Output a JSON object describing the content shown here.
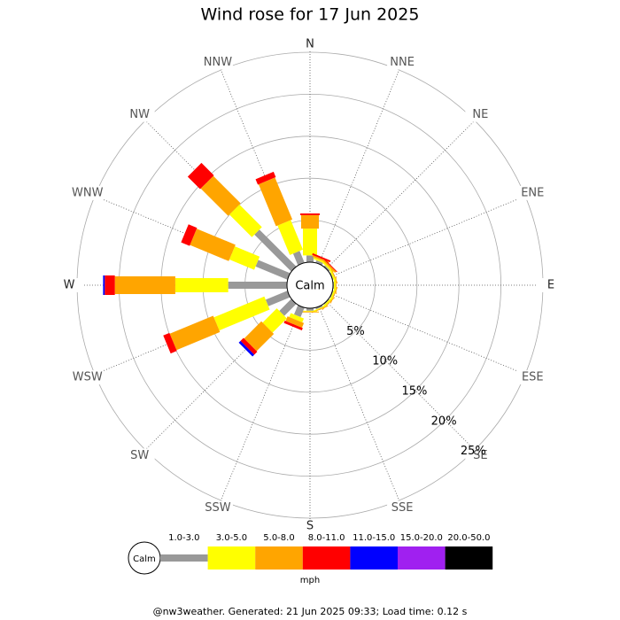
{
  "chart_data": {
    "type": "windrose",
    "title": "Wind rose for 17 Jun 2025",
    "directions": [
      "N",
      "NNE",
      "NE",
      "ENE",
      "E",
      "ESE",
      "SE",
      "SSE",
      "S",
      "SSW",
      "SW",
      "WSW",
      "W",
      "WNW",
      "NW",
      "NNW"
    ],
    "series": [
      {
        "name": "1.0-3.0",
        "color": "#999999",
        "values": [
          0.8,
          0.3,
          0.2,
          0.1,
          0.1,
          0.1,
          0.1,
          0.2,
          0.3,
          1.2,
          2.0,
          2.8,
          7.0,
          4.1,
          6.2,
          1.5
        ]
      },
      {
        "name": "3.0-5.0",
        "color": "#ffff00",
        "values": [
          3.2,
          0.2,
          0.2,
          0.2,
          0.2,
          0.2,
          0.2,
          0.1,
          0.1,
          0.5,
          2.4,
          6.5,
          6.3,
          3.2,
          3.8,
          3.8
        ]
      },
      {
        "name": "5.0-8.0",
        "color": "#ffa500",
        "values": [
          1.6,
          0.2,
          0.2,
          0.1,
          0.1,
          0.1,
          0.1,
          0.1,
          0.1,
          0.6,
          2.9,
          5.6,
          7.2,
          5.0,
          4.6,
          5.4
        ]
      },
      {
        "name": "8.0-11.0",
        "color": "#ff0000",
        "values": [
          0.2,
          0.2,
          0.1,
          0,
          0,
          0,
          0,
          0,
          0,
          0.3,
          0.5,
          0.8,
          1.2,
          1.1,
          2.1,
          0.7
        ]
      },
      {
        "name": "11.0-15.0",
        "color": "#0000ff",
        "values": [
          0,
          0,
          0,
          0,
          0,
          0,
          0,
          0,
          0,
          0,
          0.3,
          0,
          0.2,
          0,
          0,
          0
        ]
      },
      {
        "name": "15.0-20.0",
        "color": "#a020f0",
        "values": [
          0,
          0,
          0,
          0,
          0,
          0,
          0,
          0,
          0,
          0,
          0,
          0,
          0,
          0,
          0,
          0
        ]
      },
      {
        "name": "20.0-50.0",
        "color": "#000000",
        "values": [
          0,
          0,
          0,
          0,
          0,
          0,
          0,
          0,
          0,
          0,
          0,
          0,
          0,
          0,
          0,
          0
        ]
      }
    ],
    "rlim": [
      0,
      25
    ],
    "rticks": [
      {
        "value": 5,
        "label": "5%"
      },
      {
        "value": 10,
        "label": "10%"
      },
      {
        "value": 15,
        "label": "15%"
      },
      {
        "value": 20,
        "label": "20%"
      },
      {
        "value": 25,
        "label": "25%"
      }
    ],
    "calm_label": "Calm",
    "unit_label": "mph",
    "footer": "@nw3weather. Generated: 21 Jun 2025 09:33; Load time: 0.12 s"
  }
}
